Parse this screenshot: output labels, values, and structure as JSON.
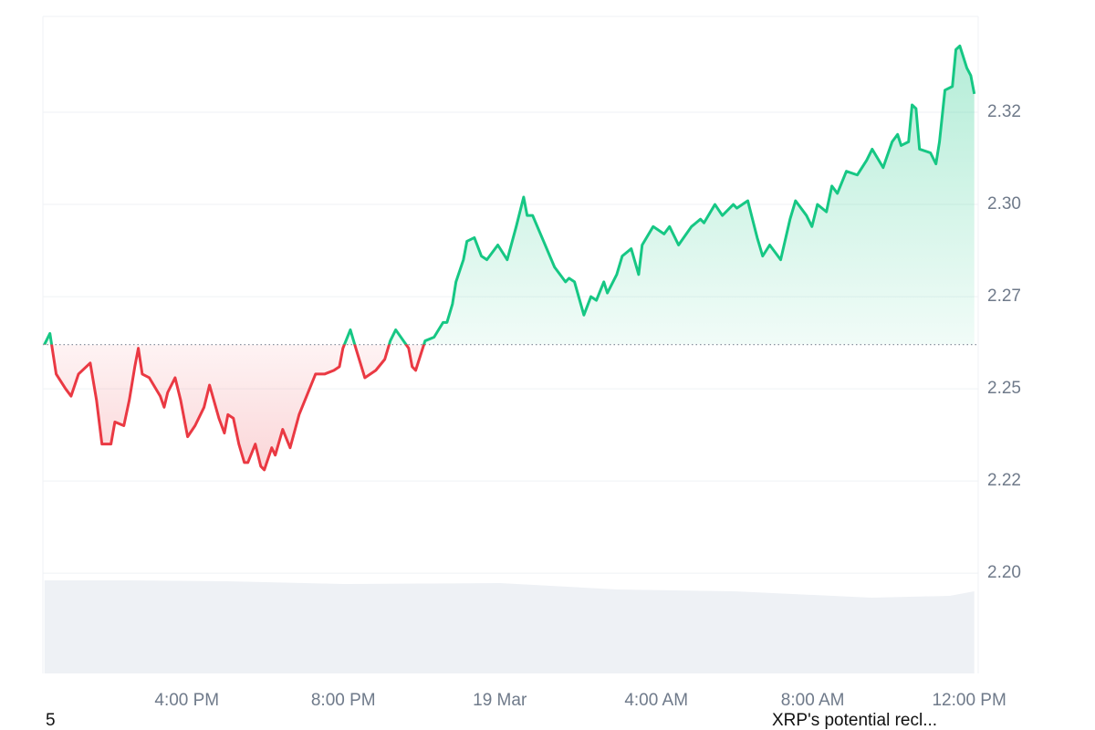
{
  "chart_data": {
    "type": "line",
    "x": [
      12.36,
      12.5,
      12.66,
      12.9,
      13.04,
      13.23,
      13.53,
      13.69,
      13.83,
      14.06,
      14.16,
      14.39,
      14.53,
      14.67,
      14.76,
      14.86,
      15.04,
      15.32,
      15.42,
      15.51,
      15.7,
      15.84,
      16.02,
      16.21,
      16.44,
      16.58,
      16.82,
      16.96,
      17.05,
      17.19,
      17.33,
      17.47,
      17.56,
      17.75,
      17.89,
      17.98,
      18.17,
      18.26,
      18.45,
      18.64,
      18.87,
      19.1,
      19.29,
      19.52,
      19.76,
      19.9,
      19.99,
      20.18,
      20.32,
      20.55,
      20.83,
      21.06,
      21.2,
      21.34,
      21.67,
      21.76,
      21.85,
      22.09,
      22.32,
      22.55,
      22.65,
      22.79,
      22.88,
      23.07,
      23.16,
      23.35,
      23.53,
      23.67,
      23.95,
      24.19,
      24.42,
      24.61,
      24.7,
      24.84,
      25.12,
      25.4,
      25.68,
      25.77,
      25.91,
      26.15,
      26.33,
      26.47,
      26.66,
      26.75,
      26.99,
      27.13,
      27.36,
      27.55,
      27.64,
      27.92,
      28.2,
      28.34,
      28.57,
      28.9,
      29.13,
      29.22,
      29.5,
      29.69,
      29.97,
      30.06,
      30.34,
      30.58,
      30.72,
      30.9,
      31.18,
      31.42,
      31.56,
      31.84,
      31.98,
      32.12,
      32.35,
      32.49,
      32.63,
      32.86,
      33.14,
      33.38,
      33.52,
      33.8,
      34.03,
      34.17,
      34.26,
      34.45,
      34.54,
      34.64,
      34.73,
      35.01,
      35.15,
      35.24,
      35.38,
      35.57,
      35.66,
      35.76,
      35.94,
      36.04,
      36.13
    ],
    "values": [
      2.262,
      2.265,
      2.254,
      2.25,
      2.248,
      2.254,
      2.257,
      2.247,
      2.235,
      2.235,
      2.241,
      2.24,
      2.247,
      2.256,
      2.261,
      2.254,
      2.253,
      2.248,
      2.245,
      2.249,
      2.253,
      2.247,
      2.237,
      2.24,
      2.245,
      2.251,
      2.242,
      2.238,
      2.243,
      2.242,
      2.235,
      2.23,
      2.23,
      2.235,
      2.229,
      2.228,
      2.234,
      2.232,
      2.239,
      2.234,
      2.243,
      2.249,
      2.254,
      2.254,
      2.255,
      2.256,
      2.261,
      2.266,
      2.261,
      2.253,
      2.255,
      2.258,
      2.263,
      2.266,
      2.261,
      2.256,
      2.255,
      2.263,
      2.264,
      2.268,
      2.268,
      2.273,
      2.279,
      2.285,
      2.29,
      2.291,
      2.286,
      2.285,
      2.289,
      2.285,
      2.294,
      2.302,
      2.297,
      2.297,
      2.29,
      2.283,
      2.279,
      2.28,
      2.279,
      2.27,
      2.275,
      2.274,
      2.279,
      2.276,
      2.281,
      2.286,
      2.288,
      2.281,
      2.289,
      2.294,
      2.292,
      2.294,
      2.289,
      2.294,
      2.296,
      2.295,
      2.3,
      2.297,
      2.3,
      2.299,
      2.301,
      2.291,
      2.286,
      2.289,
      2.285,
      2.296,
      2.301,
      2.297,
      2.294,
      2.3,
      2.298,
      2.305,
      2.303,
      2.309,
      2.308,
      2.312,
      2.315,
      2.31,
      2.317,
      2.319,
      2.316,
      2.317,
      2.327,
      2.326,
      2.315,
      2.314,
      2.311,
      2.317,
      2.331,
      2.332,
      2.342,
      2.343,
      2.337,
      2.335,
      2.33
    ],
    "baseline": 2.262,
    "up_color": "#16c784",
    "down_color": "#ea3943",
    "xlim": [
      12.32,
      36.23
    ],
    "xticks": [
      {
        "value": 16,
        "label": "4:00 PM"
      },
      {
        "value": 20,
        "label": "8:00 PM"
      },
      {
        "value": 24,
        "label": "19 Mar"
      },
      {
        "value": 28,
        "label": "4:00 AM"
      },
      {
        "value": 32,
        "label": "8:00 AM"
      },
      {
        "value": 36,
        "label": "12:00 PM"
      }
    ],
    "ylim": [
      2.1728,
      2.351
    ],
    "yticks": [
      {
        "value": 2.2,
        "label": "2.20"
      },
      {
        "value": 2.225,
        "label": "2.22"
      },
      {
        "value": 2.25,
        "label": "2.25"
      },
      {
        "value": 2.275,
        "label": "2.27"
      },
      {
        "value": 2.3,
        "label": "2.30"
      },
      {
        "value": 2.325,
        "label": "2.32"
      }
    ],
    "grid": true,
    "volume": {
      "x": [
        12.36,
        14.5,
        17,
        20,
        24,
        27,
        30,
        33.5,
        35.5,
        36.13
      ],
      "values": [
        102,
        102,
        101,
        98,
        99,
        92,
        90,
        83,
        85,
        90
      ],
      "vlim": [
        0,
        110
      ],
      "color": "#eef1f5"
    }
  },
  "footer": {
    "left": "5",
    "right": "XRP's potential recl..."
  }
}
